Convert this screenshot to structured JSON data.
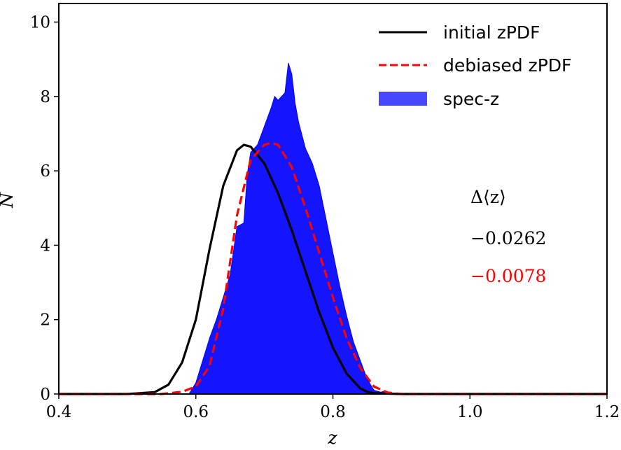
{
  "chart_data": {
    "type": "area",
    "title": "",
    "xlabel": "z",
    "ylabel": "N",
    "xlim": [
      0.4,
      1.2
    ],
    "ylim": [
      0,
      10.5
    ],
    "xticks": [
      {
        "value": 0.4,
        "label": "0.4"
      },
      {
        "value": 0.6,
        "label": "0.6"
      },
      {
        "value": 0.8,
        "label": "0.8"
      },
      {
        "value": 1.0,
        "label": "1.0"
      },
      {
        "value": 1.2,
        "label": "1.2"
      }
    ],
    "yticks": [
      {
        "value": 0,
        "label": "0"
      },
      {
        "value": 2,
        "label": "2"
      },
      {
        "value": 4,
        "label": "4"
      },
      {
        "value": 6,
        "label": "6"
      },
      {
        "value": 8,
        "label": "8"
      },
      {
        "value": 10,
        "label": "10"
      }
    ],
    "grid": false,
    "legend_position": "top-right",
    "series": [
      {
        "name": "initial zPDF",
        "style": "solid",
        "color": "#000000",
        "x": [
          0.4,
          0.5,
          0.54,
          0.56,
          0.58,
          0.6,
          0.62,
          0.64,
          0.66,
          0.67,
          0.68,
          0.7,
          0.72,
          0.74,
          0.76,
          0.78,
          0.8,
          0.82,
          0.84,
          0.85,
          0.86,
          0.9,
          1.0,
          1.2
        ],
        "y": [
          0,
          0,
          0.05,
          0.25,
          0.85,
          2.0,
          3.9,
          5.6,
          6.55,
          6.7,
          6.65,
          6.2,
          5.4,
          4.4,
          3.3,
          2.2,
          1.25,
          0.55,
          0.15,
          0.06,
          0.02,
          0,
          0,
          0
        ]
      },
      {
        "name": "debiased zPDF",
        "style": "dashed",
        "color": "#ff0000",
        "x": [
          0.4,
          0.55,
          0.58,
          0.6,
          0.62,
          0.64,
          0.66,
          0.68,
          0.7,
          0.71,
          0.72,
          0.74,
          0.76,
          0.78,
          0.8,
          0.82,
          0.84,
          0.86,
          0.88,
          0.9,
          1.0,
          1.2
        ],
        "y": [
          0,
          0,
          0.06,
          0.2,
          0.75,
          2.3,
          4.8,
          6.3,
          6.7,
          6.75,
          6.7,
          6.1,
          5.0,
          3.8,
          2.6,
          1.5,
          0.7,
          0.2,
          0.04,
          0,
          0,
          0
        ]
      },
      {
        "name": "spec-z",
        "style": "filled",
        "color": "#0000ff",
        "x": [
          0.4,
          0.59,
          0.6,
          0.61,
          0.62,
          0.63,
          0.64,
          0.65,
          0.66,
          0.67,
          0.675,
          0.68,
          0.69,
          0.7,
          0.71,
          0.715,
          0.72,
          0.73,
          0.735,
          0.74,
          0.745,
          0.75,
          0.76,
          0.77,
          0.78,
          0.79,
          0.8,
          0.81,
          0.82,
          0.83,
          0.84,
          0.85,
          0.86,
          0.87,
          0.875,
          0.88,
          0.89,
          1.2
        ],
        "y": [
          0,
          0,
          0.3,
          0.9,
          1.5,
          2.0,
          2.6,
          3.2,
          4.5,
          4.6,
          5.9,
          6.5,
          6.7,
          7.2,
          7.7,
          8.0,
          7.9,
          8.1,
          8.9,
          8.6,
          7.8,
          7.3,
          6.6,
          6.2,
          5.6,
          4.7,
          3.8,
          2.9,
          2.1,
          1.4,
          0.9,
          0.4,
          0.1,
          0.05,
          0.08,
          0.05,
          0,
          0
        ]
      }
    ],
    "annotations": {
      "heading": "Δ⟨z⟩",
      "values": [
        {
          "text": "−0.0262",
          "color": "#000000"
        },
        {
          "text": "−0.0078",
          "color": "#ff0000"
        }
      ]
    }
  }
}
